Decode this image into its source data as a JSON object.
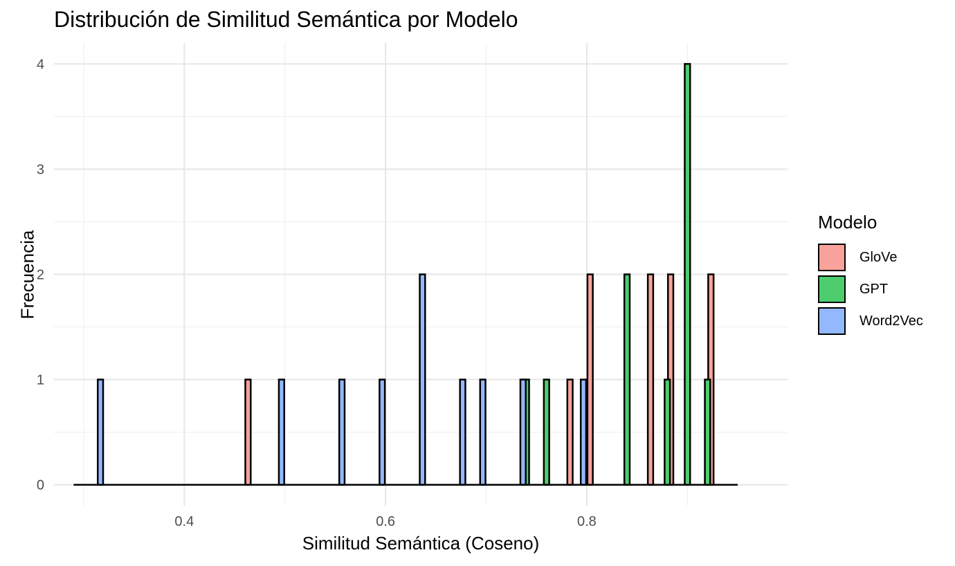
{
  "chart_data": {
    "type": "bar",
    "title": "Distribución de Similitud Semántica por Modelo",
    "xlabel": "Similitud Semántica (Coseno)",
    "ylabel": "Frecuencia",
    "xlim": [
      0.2705,
      0.9995
    ],
    "ylim": [
      -0.2,
      4.2
    ],
    "bin_width": 0.02,
    "xticks": [
      0.4,
      0.6,
      0.8
    ],
    "xtick_labels": [
      "0.4",
      "0.6",
      "0.8"
    ],
    "yticks": [
      0,
      1,
      2,
      3,
      4
    ],
    "ytick_labels": [
      "0",
      "1",
      "2",
      "3",
      "4"
    ],
    "grid": true,
    "legend": {
      "title": "Modelo",
      "position": "right"
    },
    "series": [
      {
        "name": "GloVe",
        "color": "#F8A29B",
        "x": [
          0.47,
          0.79,
          0.81,
          0.87,
          0.89,
          0.93
        ],
        "values": [
          1,
          1,
          2,
          2,
          2,
          2
        ]
      },
      {
        "name": "GPT",
        "color": "#4DCD6E",
        "x": [
          0.74,
          0.76,
          0.84,
          0.88,
          0.9,
          0.92
        ],
        "values": [
          1,
          1,
          2,
          1,
          4,
          1
        ]
      },
      {
        "name": "Word2Vec",
        "color": "#93B8FE",
        "x": [
          0.31,
          0.49,
          0.55,
          0.59,
          0.63,
          0.67,
          0.69,
          0.73,
          0.79
        ],
        "values": [
          1,
          1,
          1,
          1,
          2,
          1,
          1,
          1,
          1
        ]
      }
    ]
  }
}
